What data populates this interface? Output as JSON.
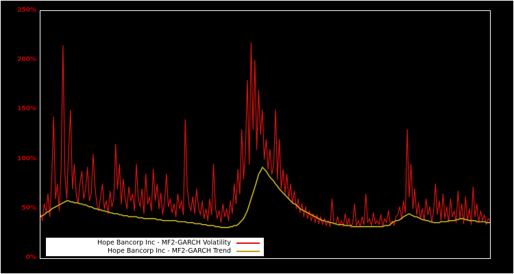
{
  "chart_data": {
    "type": "line",
    "title": "",
    "xlabel": "",
    "ylabel": "",
    "ylim": [
      0,
      250
    ],
    "yticks": [
      "0%",
      "50%",
      "100%",
      "150%",
      "200%",
      "250%"
    ],
    "grid": false,
    "background": "#000000",
    "frame_color": "#ffffff",
    "axis_color": "#cc0000",
    "legend": {
      "position": "bottom-left",
      "background": "#ffffff",
      "entries": [
        {
          "label": "Hope Bancorp Inc - MF2-GARCH Volatility",
          "color": "#dd1111"
        },
        {
          "label": "Hope Bancorp Inc - MF2-GARCH Trend",
          "color": "#b5a21a"
        }
      ]
    },
    "series": [
      {
        "name": "Hope Bancorp Inc - MF2-GARCH Volatility",
        "color": "#dd1111",
        "values": [
          45,
          38,
          55,
          47,
          65,
          42,
          80,
          143,
          60,
          75,
          48,
          90,
          215,
          85,
          60,
          110,
          150,
          70,
          95,
          65,
          55,
          75,
          88,
          60,
          70,
          92,
          58,
          65,
          105,
          72,
          55,
          48,
          62,
          75,
          50,
          58,
          45,
          68,
          52,
          60,
          115,
          70,
          95,
          55,
          80,
          62,
          50,
          72,
          58,
          65,
          48,
          95,
          60,
          52,
          70,
          45,
          85,
          55,
          62,
          48,
          90,
          58,
          75,
          50,
          66,
          44,
          58,
          85,
          52,
          60,
          46,
          55,
          42,
          65,
          50,
          58,
          44,
          140,
          72,
          55,
          48,
          62,
          45,
          70,
          52,
          44,
          58,
          40,
          50,
          38,
          60,
          44,
          95,
          52,
          40,
          48,
          36,
          55,
          42,
          50,
          38,
          58,
          45,
          75,
          55,
          90,
          65,
          130,
          80,
          110,
          180,
          95,
          218,
          130,
          200,
          110,
          170,
          125,
          150,
          100,
          120,
          90,
          110,
          85,
          95,
          150,
          80,
          120,
          70,
          90,
          65,
          85,
          60,
          75,
          55,
          68,
          50,
          60,
          46,
          55,
          42,
          52,
          40,
          48,
          38,
          45,
          36,
          44,
          35,
          42,
          34,
          40,
          33,
          38,
          32,
          60,
          36,
          34,
          42,
          33,
          38,
          32,
          45,
          34,
          40,
          31,
          36,
          55,
          33,
          38,
          32,
          42,
          34,
          65,
          36,
          40,
          33,
          46,
          35,
          38,
          34,
          44,
          32,
          40,
          36,
          48,
          34,
          38,
          33,
          42,
          44,
          52,
          40,
          58,
          46,
          130,
          62,
          95,
          50,
          70,
          44,
          56,
          40,
          50,
          38,
          60,
          44,
          52,
          36,
          48,
          75,
          44,
          58,
          38,
          65,
          40,
          52,
          36,
          60,
          42,
          48,
          36,
          68,
          40,
          55,
          35,
          62,
          38,
          50,
          34,
          72,
          42,
          55,
          36,
          48,
          38,
          44,
          34,
          40,
          38
        ]
      },
      {
        "name": "Hope Bancorp Inc - MF2-GARCH Trend",
        "color": "#b5a21a",
        "values": [
          42,
          43,
          44,
          46,
          47,
          48,
          50,
          51,
          52,
          53,
          54,
          55,
          56,
          57,
          58,
          58,
          57,
          57,
          56,
          56,
          56,
          55,
          55,
          54,
          54,
          53,
          52,
          52,
          51,
          50,
          50,
          49,
          49,
          48,
          48,
          47,
          47,
          46,
          46,
          45,
          45,
          45,
          44,
          44,
          43,
          43,
          43,
          42,
          42,
          42,
          42,
          42,
          41,
          41,
          41,
          40,
          40,
          40,
          40,
          40,
          40,
          40,
          39,
          39,
          39,
          38,
          38,
          38,
          38,
          38,
          38,
          38,
          38,
          37,
          37,
          37,
          37,
          37,
          36,
          36,
          36,
          36,
          35,
          35,
          35,
          35,
          34,
          34,
          34,
          33,
          33,
          33,
          33,
          32,
          32,
          32,
          31,
          31,
          31,
          31,
          31,
          32,
          32,
          33,
          33,
          34,
          36,
          38,
          40,
          44,
          48,
          54,
          60,
          66,
          72,
          78,
          85,
          88,
          92,
          90,
          88,
          85,
          82,
          80,
          78,
          75,
          73,
          70,
          68,
          66,
          64,
          62,
          60,
          58,
          56,
          55,
          54,
          52,
          50,
          49,
          48,
          47,
          46,
          45,
          44,
          43,
          42,
          41,
          40,
          39,
          38,
          38,
          37,
          37,
          36,
          36,
          35,
          35,
          34,
          34,
          34,
          34,
          33,
          33,
          33,
          33,
          32,
          32,
          32,
          32,
          32,
          32,
          32,
          32,
          32,
          32,
          32,
          32,
          32,
          32,
          32,
          32,
          32,
          33,
          33,
          33,
          34,
          36,
          37,
          38,
          38,
          39,
          40,
          42,
          43,
          44,
          45,
          44,
          43,
          42,
          42,
          41,
          40,
          39,
          39,
          38,
          38,
          37,
          37,
          36,
          36,
          36,
          36,
          37,
          37,
          37,
          37,
          38,
          38,
          38,
          38,
          39,
          39,
          40,
          40,
          40,
          39,
          39,
          38,
          38,
          38,
          38,
          37,
          37,
          37,
          37,
          37,
          36,
          36,
          36
        ]
      }
    ]
  }
}
